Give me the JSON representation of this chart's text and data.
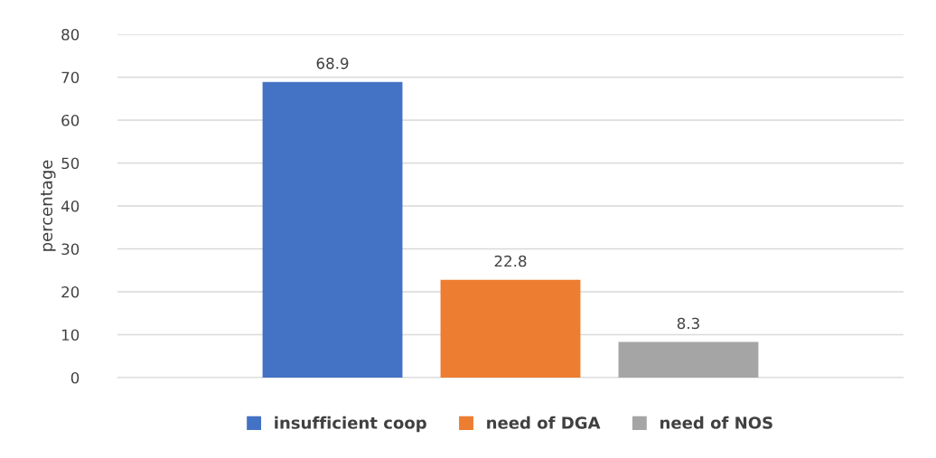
{
  "chart_data": {
    "type": "bar",
    "ylabel": "percentage",
    "categories": [
      null
    ],
    "series": [
      {
        "name": "insufficient coop",
        "color": "#4472c4",
        "values": [
          68.9
        ]
      },
      {
        "name": "need of DGA",
        "color": "#ed7d31",
        "values": [
          22.8
        ]
      },
      {
        "name": "need of NOS",
        "color": "#a5a5a5",
        "values": [
          8.3
        ]
      }
    ],
    "ylim": [
      0,
      80
    ],
    "yticks": [
      0,
      10,
      20,
      30,
      40,
      50,
      60,
      70,
      80
    ],
    "grid": "y",
    "legend": "bottom",
    "data_labels": true
  }
}
